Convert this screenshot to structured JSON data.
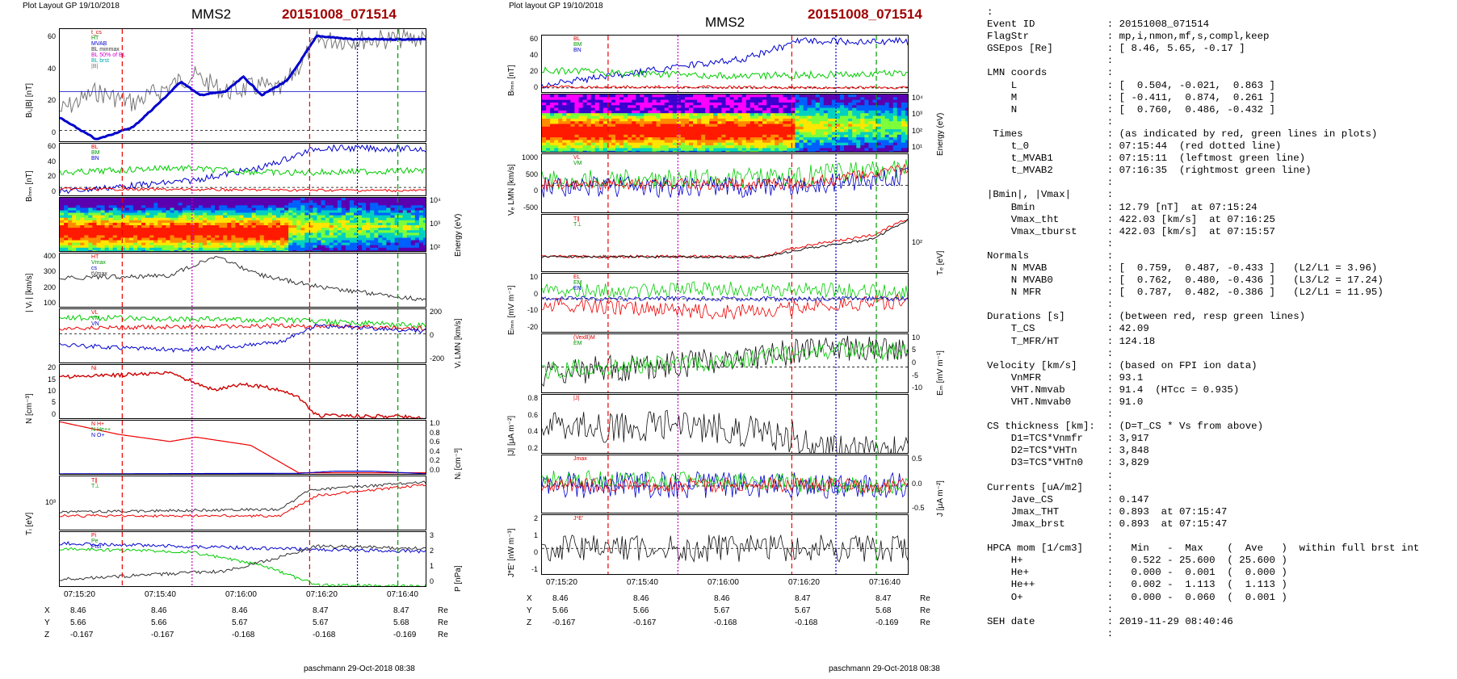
{
  "left": {
    "header_small": "Plot Layout GP 19/10/2018",
    "title": "MMS2",
    "event": "20151008_071514",
    "footer": "paschmann 29-Oct-2018 08:38",
    "xticks": [
      "07:15:20",
      "07:15:40",
      "07:16:00",
      "07:16:20",
      "07:16:40"
    ],
    "pos_rows": [
      {
        "label": "X",
        "values": [
          "8.46",
          "8.46",
          "8.46",
          "8.47",
          "8.47"
        ],
        "unit": "Re"
      },
      {
        "label": "Y",
        "values": [
          "5.66",
          "5.66",
          "5.67",
          "5.67",
          "5.68"
        ],
        "unit": "Re"
      },
      {
        "label": "Z",
        "values": [
          "-0.167",
          "-0.167",
          "-0.168",
          "-0.168",
          "-0.169"
        ],
        "unit": "Re"
      }
    ],
    "panels": [
      {
        "ylabel": "Bₗ,|B| [nT]",
        "yticks": [
          "60",
          "40",
          "20",
          "0"
        ],
        "legend": [
          "t_cs",
          "HT",
          "MVAB",
          "BL minmax",
          "BL 50% of BL",
          "BL brst",
          "|B|"
        ]
      },
      {
        "ylabel": "Bₗₘₙ [nT]",
        "yticks": [
          "60",
          "40",
          "20",
          "0"
        ],
        "legend": [
          "BL",
          "BM",
          "BN"
        ]
      },
      {
        "ylabel": "Energy (eV)",
        "yticks": [
          "10⁴",
          "10³",
          "10²"
        ]
      },
      {
        "ylabel": "| Vᵢ | [km/s]",
        "yticks": [
          "400",
          "300",
          "200",
          "100"
        ],
        "legend": [
          "HT",
          "Vmax",
          "cs",
          "tVmax"
        ]
      },
      {
        "ylabel": "Vᵢ LMN [km/s]",
        "yticks": [
          "200",
          "0",
          "-200"
        ],
        "legend": [
          "VL",
          "VM",
          "VN"
        ]
      },
      {
        "ylabel": "N [cm⁻³]",
        "yticks": [
          "20",
          "15",
          "10",
          "5",
          "0"
        ],
        "legend": [
          "Ni"
        ]
      },
      {
        "ylabel": "Nᵢ [cm⁻³]",
        "yticks": [
          "1.0",
          "0.8",
          "0.6",
          "0.4",
          "0.2",
          "0.0"
        ],
        "legend": [
          "N H+",
          "N He++",
          "N O+"
        ]
      },
      {
        "ylabel": "Tᵢ [eV]",
        "yticks": [
          "10³"
        ],
        "legend": [
          "T∥",
          "T⊥"
        ]
      },
      {
        "ylabel": "P [nPa]",
        "yticks": [
          "3",
          "2",
          "1",
          "0"
        ],
        "legend": [
          "Pi",
          "Pe",
          "Ptot"
        ]
      }
    ]
  },
  "mid": {
    "header_small": "Plot layout GP 19/10/2018",
    "title": "MMS2",
    "event": "20151008_071514",
    "footer": "paschmann 29-Oct-2018 08:38",
    "xticks": [
      "07:15:20",
      "07:15:40",
      "07:16:00",
      "07:16:20",
      "07:16:40"
    ],
    "pos_rows": [
      {
        "label": "X",
        "values": [
          "8.46",
          "8.46",
          "8.46",
          "8.47",
          "8.47"
        ],
        "unit": "Re"
      },
      {
        "label": "Y",
        "values": [
          "5.66",
          "5.66",
          "5.67",
          "5.67",
          "5.68"
        ],
        "unit": "Re"
      },
      {
        "label": "Z",
        "values": [
          "-0.167",
          "-0.167",
          "-0.168",
          "-0.168",
          "-0.169"
        ],
        "unit": "Re"
      }
    ],
    "panels": [
      {
        "ylabel": "Bₗₘₙ [nT]",
        "yticks": [
          "60",
          "40",
          "20",
          "0"
        ],
        "legend": [
          "BL",
          "BM",
          "BN"
        ]
      },
      {
        "ylabel": "Energy (eV)",
        "yticks": [
          "10⁴",
          "10³",
          "10²",
          "10¹"
        ]
      },
      {
        "ylabel": "Vₑ LMN [km/s]",
        "yticks": [
          "1000",
          "500",
          "0",
          "-500"
        ],
        "legend": [
          "VL",
          "VM"
        ]
      },
      {
        "ylabel": "Tₑ [eV]",
        "yticks": [
          "10²"
        ],
        "legend": [
          "T∥",
          "T⊥"
        ]
      },
      {
        "ylabel": "Eₗₘₙ [mV m⁻¹]",
        "yticks": [
          "10",
          "0",
          "-10",
          "-20"
        ],
        "legend": [
          "EL",
          "EM",
          "EN"
        ]
      },
      {
        "ylabel": "Eₘ [mV m⁻¹]",
        "yticks": [
          "10",
          "5",
          "0",
          "-5",
          "-10"
        ],
        "legend": [
          "(VexB)M",
          "EM"
        ]
      },
      {
        "ylabel": "|J| [μA m⁻²]",
        "yticks": [
          "0.8",
          "0.6",
          "0.4",
          "0.2"
        ],
        "legend": [
          "|J|"
        ]
      },
      {
        "ylabel": "J [μA m⁻²]",
        "yticks": [
          "0.5",
          "0.0",
          "-0.5"
        ],
        "legend": [
          "Jmax"
        ]
      },
      {
        "ylabel": "J*E' [nW m⁻³]",
        "yticks": [
          "2",
          "1",
          "0",
          "-1"
        ],
        "legend": [
          "J*E'"
        ]
      }
    ]
  },
  "info_lines": [
    ":",
    "Event ID            : 20151008_071514",
    "FlagStr             : mp,i,nmon,mf,s,compl,keep",
    "GSEpos [Re]         : [ 8.46, 5.65, -0.17 ]",
    "                    :",
    "LMN coords          :",
    "    L               : [  0.504, -0.021,  0.863 ]",
    "    M               : [ -0.411,  0.874,  0.261 ]",
    "    N               : [  0.760,  0.486, -0.432 ]",
    "                    :",
    " Times              : (as indicated by red, green lines in plots)",
    "    t_0             : 07:15:44  (red dotted line)",
    "    t_MVAB1         : 07:15:11  (leftmost green line)",
    "    t_MVAB2         : 07:16:35  (rightmost green line)",
    "                    :",
    "|Bmin|, |Vmax|      :",
    "    Bmin            : 12.79 [nT]  at 07:15:24",
    "    Vmax_tht        : 422.03 [km/s]  at 07:16:25",
    "    Vmax_tburst     : 422.03 [km/s]  at 07:15:57",
    "                    :",
    "Normals             :",
    "    N MVAB          : [  0.759,  0.487, -0.433 ]   (L2/L1 = 3.96)",
    "    N MVAB0         : [  0.762,  0.480, -0.436 ]   (L3/L2 = 17.24)",
    "    N MFR           : [  0.787,  0.482, -0.386 ]   (L2/L1 = 11.95)",
    "                    :",
    "Durations [s]       : (between red, resp green lines)",
    "    T_CS            : 42.09",
    "    T_MFR/HT        : 124.18",
    "                    :",
    "Velocity [km/s]     : (based on FPI ion data)",
    "    VnMFR           : 93.1",
    "    VHT.Nmvab       : 91.4  (HTcc = 0.935)",
    "    VHT.Nmvab0      : 91.0",
    "                    :",
    "CS thickness [km]:  : (D=T_CS * Vs from above)",
    "    D1=TCS*Vnmfr    : 3,917",
    "    D2=TCS*VHTn     : 3,848",
    "    D3=TCS*VHTn0    : 3,829",
    "                    :",
    "Currents [uA/m2]    :",
    "    Jave_CS         : 0.147",
    "    Jmax_THT        : 0.893  at 07:15:47",
    "    Jmax_brst       : 0.893  at 07:15:47",
    "                    :",
    "HPCA mom [1/cm3]    :   Min   -  Max    (  Ave   )  within full brst int",
    "    H+              :   0.522 - 25.600  ( 25.600 )",
    "    He+             :   0.000 -  0.001  (  0.000 )",
    "    He++            :   0.002 -  1.113  (  1.113 )",
    "    O+              :   0.000 -  0.060  (  0.001 )",
    "                    :",
    "SEH date            : 2019-11-29 08:40:46",
    "                    :"
  ],
  "chart_data": [
    {
      "type": "line",
      "title": "MMS2 20151008_071514",
      "xlabel": "",
      "x_ticks": [
        "07:15:20",
        "07:15:40",
        "07:16:00",
        "07:16:20",
        "07:16:40"
      ],
      "series": [
        {
          "name": "BL brst",
          "panel": "Bₗ,|B|",
          "x": [
            "07:15:15",
            "07:15:24",
            "07:15:35",
            "07:15:44",
            "07:15:50",
            "07:15:55",
            "07:16:00",
            "07:16:05",
            "07:16:10",
            "07:16:20",
            "07:16:30",
            "07:16:45"
          ],
          "values": [
            10,
            -1,
            8,
            45,
            30,
            35,
            45,
            35,
            55,
            68,
            65,
            63
          ]
        },
        {
          "name": "Ni",
          "panel": "N",
          "x": [
            "07:15:15",
            "07:15:30",
            "07:15:40",
            "07:15:55",
            "07:16:05",
            "07:16:15",
            "07:16:20",
            "07:16:45"
          ],
          "values": [
            16,
            17,
            16,
            10,
            12,
            7,
            1,
            0.5
          ]
        },
        {
          "name": "N He++",
          "panel": "Nᵢ",
          "x": [
            "07:15:20",
            "07:15:30",
            "07:15:40",
            "07:15:50",
            "07:16:00",
            "07:16:10",
            "07:16:20",
            "07:16:40"
          ],
          "values": [
            1.0,
            0.8,
            0.65,
            0.72,
            0.55,
            0.02,
            0.02,
            0.02
          ]
        }
      ],
      "vertical_markers": [
        {
          "color": "red",
          "style": "dashed",
          "time": "07:15:38"
        },
        {
          "color": "red",
          "style": "dotted",
          "time": "07:15:44"
        },
        {
          "color": "red",
          "style": "dashed",
          "time": "07:16:10"
        },
        {
          "color": "blue",
          "style": "dotted",
          "time": "07:16:25"
        },
        {
          "color": "green",
          "style": "dashed",
          "time": "07:16:35"
        }
      ]
    }
  ]
}
